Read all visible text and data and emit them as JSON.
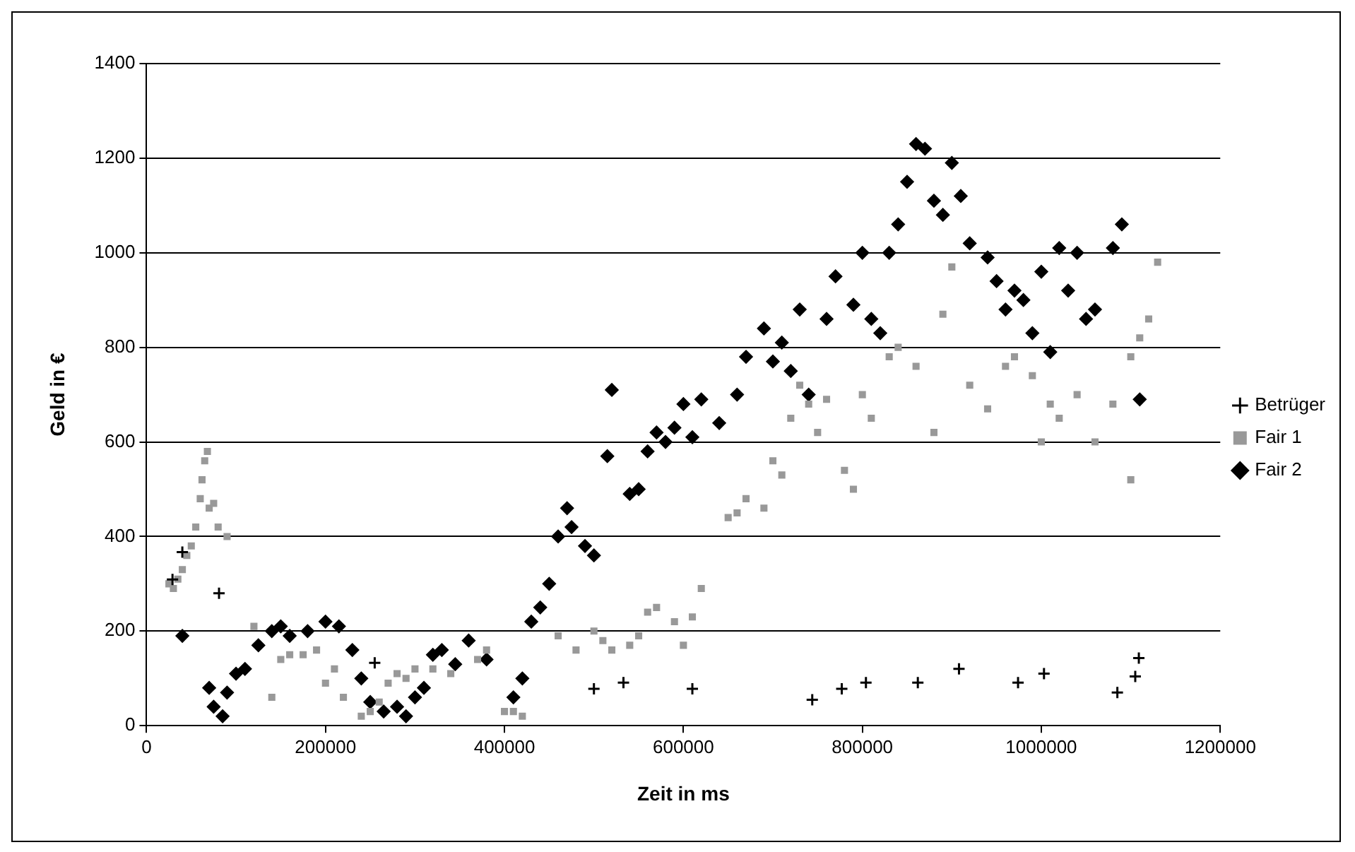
{
  "chart_data": {
    "type": "scatter",
    "xlabel": "Zeit in ms",
    "ylabel": "Geld in €",
    "xlim": [
      0,
      1200000
    ],
    "xticks": [
      0,
      200000,
      400000,
      600000,
      800000,
      1000000,
      1200000
    ],
    "ylim": [
      0,
      1400
    ],
    "yticks": [
      0,
      200,
      400,
      600,
      800,
      1000,
      1200,
      1400
    ],
    "grid": "y",
    "legend": "right",
    "series": [
      {
        "name": "Betrüger",
        "color": "#000000",
        "marker": "cross",
        "x": [
          29000,
          40000,
          81000,
          255000,
          500000,
          533000,
          610000,
          744000,
          777000,
          804000,
          862000,
          908000,
          974000,
          1003000,
          1085000,
          1105000,
          1109000
        ],
        "values": [
          309,
          367,
          280,
          133,
          78,
          91,
          78,
          55,
          78,
          91,
          91,
          120,
          91,
          110,
          70,
          104,
          143
        ]
      },
      {
        "name": "Fair 1",
        "color": "#999999",
        "marker": "square",
        "x": [
          25000,
          30000,
          35000,
          40000,
          45000,
          50000,
          55000,
          60000,
          62000,
          65000,
          68000,
          70000,
          75000,
          80000,
          90000,
          120000,
          140000,
          150000,
          160000,
          175000,
          190000,
          200000,
          210000,
          220000,
          240000,
          250000,
          260000,
          270000,
          280000,
          290000,
          300000,
          320000,
          340000,
          370000,
          380000,
          400000,
          410000,
          420000,
          460000,
          480000,
          500000,
          510000,
          520000,
          540000,
          550000,
          560000,
          570000,
          590000,
          600000,
          610000,
          620000,
          650000,
          660000,
          670000,
          690000,
          700000,
          710000,
          720000,
          730000,
          740000,
          750000,
          760000,
          780000,
          790000,
          800000,
          810000,
          830000,
          840000,
          860000,
          880000,
          890000,
          900000,
          920000,
          940000,
          960000,
          970000,
          990000,
          1000000,
          1010000,
          1020000,
          1040000,
          1060000,
          1080000,
          1100000,
          1100000,
          1110000,
          1120000,
          1130000
        ],
        "values": [
          300,
          290,
          310,
          330,
          360,
          380,
          420,
          480,
          520,
          560,
          580,
          460,
          470,
          420,
          400,
          210,
          60,
          140,
          150,
          150,
          160,
          90,
          120,
          60,
          20,
          30,
          50,
          90,
          110,
          100,
          120,
          120,
          110,
          140,
          160,
          30,
          30,
          20,
          190,
          160,
          200,
          180,
          160,
          170,
          190,
          240,
          250,
          220,
          170,
          230,
          290,
          440,
          450,
          480,
          460,
          560,
          530,
          650,
          720,
          680,
          620,
          690,
          540,
          500,
          700,
          650,
          780,
          800,
          760,
          620,
          870,
          970,
          720,
          670,
          760,
          780,
          740,
          600,
          680,
          650,
          700,
          600,
          680,
          520,
          780,
          820,
          860,
          980
        ]
      },
      {
        "name": "Fair 2",
        "color": "#000000",
        "marker": "diamond",
        "x": [
          40000,
          70000,
          75000,
          85000,
          90000,
          100000,
          110000,
          125000,
          140000,
          150000,
          160000,
          180000,
          200000,
          215000,
          230000,
          240000,
          250000,
          265000,
          280000,
          290000,
          300000,
          310000,
          320000,
          330000,
          345000,
          360000,
          380000,
          410000,
          420000,
          430000,
          440000,
          450000,
          460000,
          470000,
          475000,
          490000,
          500000,
          515000,
          520000,
          540000,
          550000,
          560000,
          570000,
          580000,
          590000,
          600000,
          610000,
          620000,
          640000,
          660000,
          670000,
          690000,
          700000,
          710000,
          720000,
          730000,
          740000,
          760000,
          770000,
          790000,
          800000,
          810000,
          820000,
          830000,
          840000,
          850000,
          860000,
          870000,
          880000,
          890000,
          900000,
          910000,
          920000,
          940000,
          950000,
          960000,
          970000,
          980000,
          990000,
          1000000,
          1010000,
          1020000,
          1030000,
          1040000,
          1050000,
          1060000,
          1080000,
          1090000,
          1110000
        ],
        "values": [
          190,
          80,
          40,
          20,
          70,
          110,
          120,
          170,
          200,
          210,
          190,
          200,
          220,
          210,
          160,
          100,
          50,
          30,
          40,
          20,
          60,
          80,
          150,
          160,
          130,
          180,
          140,
          60,
          100,
          220,
          250,
          300,
          400,
          460,
          420,
          380,
          360,
          570,
          710,
          490,
          500,
          580,
          620,
          600,
          630,
          680,
          610,
          690,
          640,
          700,
          780,
          840,
          770,
          810,
          750,
          880,
          700,
          860,
          950,
          890,
          1000,
          860,
          830,
          1000,
          1060,
          1150,
          1230,
          1220,
          1110,
          1080,
          1190,
          1120,
          1020,
          990,
          940,
          880,
          920,
          900,
          830,
          960,
          790,
          1010,
          920,
          1000,
          860,
          880,
          1010,
          1060,
          690
        ]
      }
    ]
  }
}
